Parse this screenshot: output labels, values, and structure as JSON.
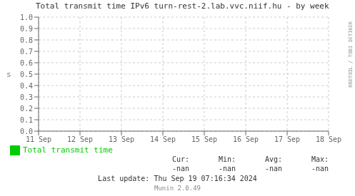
{
  "chart_data": {
    "type": "line",
    "title": "Total transmit time IPv6 turn-rest-2.lab.vvc.niif.hu - by week",
    "y_label": "s",
    "categories": [
      "11 Sep",
      "12 Sep",
      "13 Sep",
      "14 Sep",
      "15 Sep",
      "16 Sep",
      "17 Sep",
      "18 Sep"
    ],
    "series": [
      {
        "name": "Total transmit time",
        "color": "#00cc00",
        "values": [
          null,
          null,
          null,
          null,
          null,
          null,
          null,
          null
        ]
      }
    ],
    "ylim": [
      0.0,
      1.0
    ],
    "yticks": [
      {
        "value": 0.0,
        "label": "0.0"
      },
      {
        "value": 0.1,
        "label": "0.1"
      },
      {
        "value": 0.2,
        "label": "0.2"
      },
      {
        "value": 0.3,
        "label": "0.3"
      },
      {
        "value": 0.4,
        "label": "0.4"
      },
      {
        "value": 0.5,
        "label": "0.5"
      },
      {
        "value": 0.6,
        "label": "0.6"
      },
      {
        "value": 0.7,
        "label": "0.7"
      },
      {
        "value": 0.8,
        "label": "0.8"
      },
      {
        "value": 0.9,
        "label": "0.9"
      },
      {
        "value": 1.0,
        "label": "1.0"
      }
    ],
    "grid": true,
    "legend": "bottom",
    "annotations": [
      "Cur:",
      "Min:",
      "Avg:",
      "Max:",
      "-nan",
      "-nan",
      "-nan",
      "-nan",
      "Last update: Thu Sep 19 07:16:34 2024",
      "Munin 2.0.49",
      "RRDTOOL / TOBI OETIKER"
    ]
  }
}
